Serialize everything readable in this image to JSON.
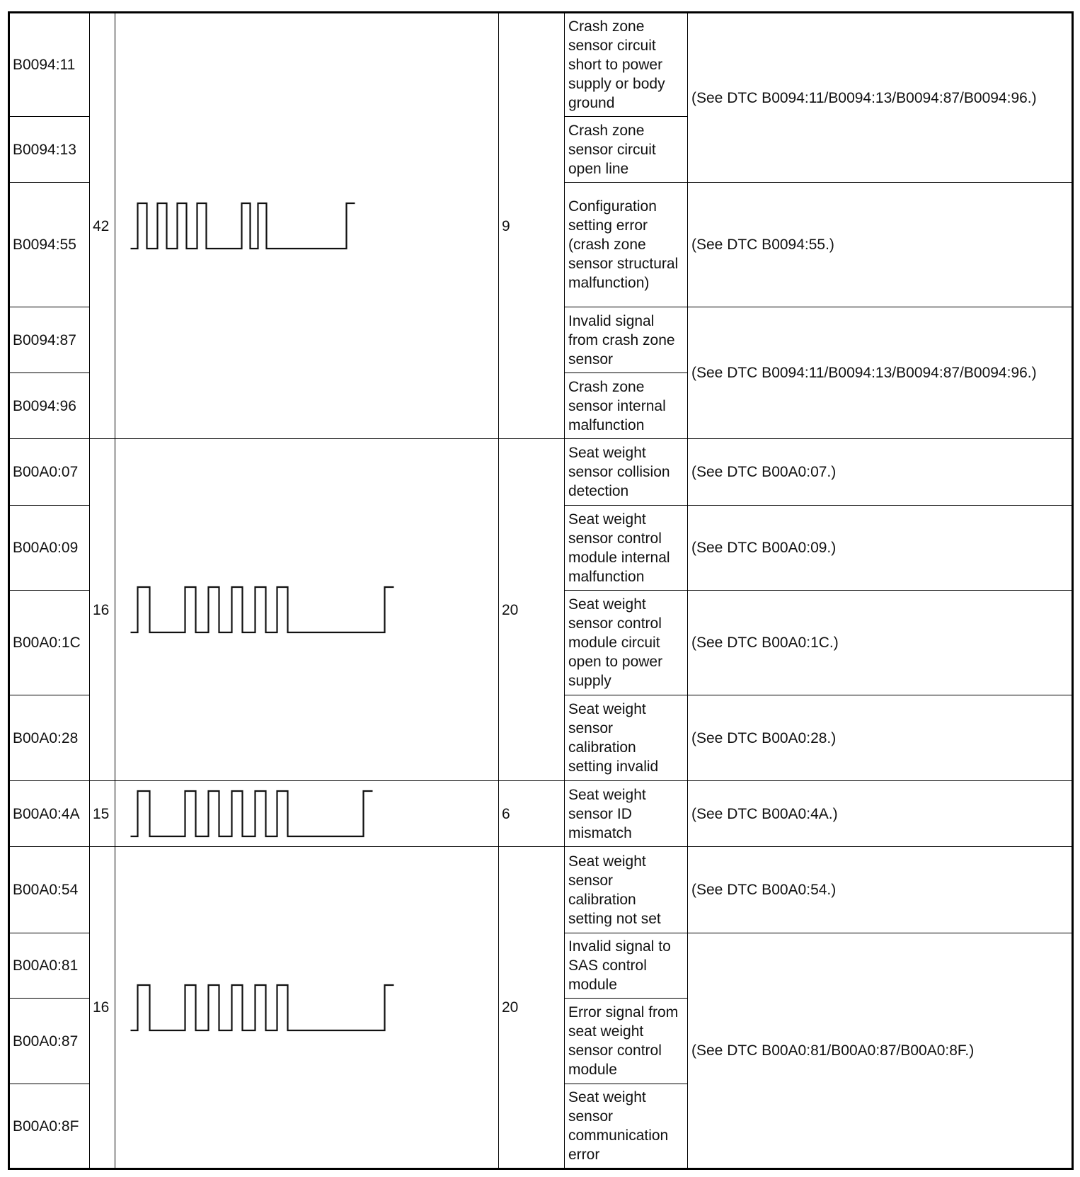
{
  "table": {
    "groups": [
      {
        "count_a": 42,
        "count_b": 9,
        "rows": [
          {
            "code": "B0094:11",
            "description": "Crash zone sensor circuit short to power supply or body ground"
          },
          {
            "code": "B0094:13",
            "description": "Crash zone sensor circuit open line"
          },
          {
            "code": "B0094:55",
            "description": "Configuration setting error (crash zone sensor structural malfunction)"
          },
          {
            "code": "B0094:87",
            "description": "Invalid signal from crash zone sensor"
          },
          {
            "code": "B0094:96",
            "description": "Crash zone sensor internal malfunction"
          }
        ],
        "actions": [
          "(See DTC B0094:11/B0094:13/B0094:87/B0094:96.)",
          "(See DTC B0094:55.)",
          "(See DTC B0094:11/B0094:13/B0094:87/B0094:96.)"
        ]
      },
      {
        "count_a": 16,
        "count_b": 20,
        "rows": [
          {
            "code": "B00A0:07",
            "description": "Seat weight sensor collision detection"
          },
          {
            "code": "B00A0:09",
            "description": "Seat weight sensor control module internal malfunction"
          },
          {
            "code": "B00A0:1C",
            "description": "Seat weight sensor control module circuit open to power supply"
          },
          {
            "code": "B00A0:28",
            "description": "Seat weight sensor calibration setting invalid"
          }
        ],
        "actions": [
          "(See DTC B00A0:07.)",
          "(See DTC B00A0:09.)",
          "(See DTC B00A0:1C.)",
          "(See DTC B00A0:28.)"
        ]
      },
      {
        "count_a": 15,
        "count_b": 6,
        "rows": [
          {
            "code": "B00A0:4A",
            "description": "Seat weight sensor ID mismatch"
          }
        ],
        "actions": [
          "(See DTC B00A0:4A.)"
        ]
      },
      {
        "count_a": 16,
        "count_b": 20,
        "rows": [
          {
            "code": "B00A0:54",
            "description": "Seat weight sensor calibration setting not set"
          },
          {
            "code": "B00A0:81",
            "description": "Invalid signal to SAS control module"
          },
          {
            "code": "B00A0:87",
            "description": "Error signal from seat weight sensor control module"
          },
          {
            "code": "B00A0:8F",
            "description": "Seat weight sensor communication error"
          }
        ],
        "actions": [
          "(See DTC B00A0:54.)",
          "(See DTC B00A0:81/B00A0:87/B00A0:8F.)"
        ]
      }
    ]
  }
}
